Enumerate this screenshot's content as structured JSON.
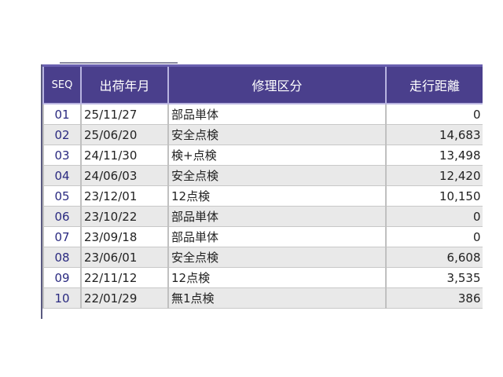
{
  "table": {
    "headers": [
      "SEQ",
      "出荷年月",
      "修理区分",
      "走行距離"
    ],
    "rows": [
      {
        "seq": "01",
        "date": "25/11/27",
        "type": "部品単体",
        "distance": "0"
      },
      {
        "seq": "02",
        "date": "25/06/20",
        "type": "安全点検",
        "distance": "14,683"
      },
      {
        "seq": "03",
        "date": "24/11/30",
        "type": "検+点検",
        "distance": "13,498"
      },
      {
        "seq": "04",
        "date": "24/06/03",
        "type": "安全点検",
        "distance": "12,420"
      },
      {
        "seq": "05",
        "date": "23/12/01",
        "type": "12点検",
        "distance": "10,150"
      },
      {
        "seq": "06",
        "date": "23/10/22",
        "type": "部品単体",
        "distance": "0"
      },
      {
        "seq": "07",
        "date": "23/09/18",
        "type": "部品単体",
        "distance": "0"
      },
      {
        "seq": "08",
        "date": "23/06/01",
        "type": "安全点検",
        "distance": "6,608"
      },
      {
        "seq": "09",
        "date": "22/11/12",
        "type": "12点検",
        "distance": "3,535"
      },
      {
        "seq": "10",
        "date": "22/01/29",
        "type": "無1点検",
        "distance": "386"
      }
    ]
  },
  "colors": {
    "header_bg": "#4a3f8c",
    "alt_row": "#e9e9e9",
    "seq_text": "#2a2a80"
  }
}
